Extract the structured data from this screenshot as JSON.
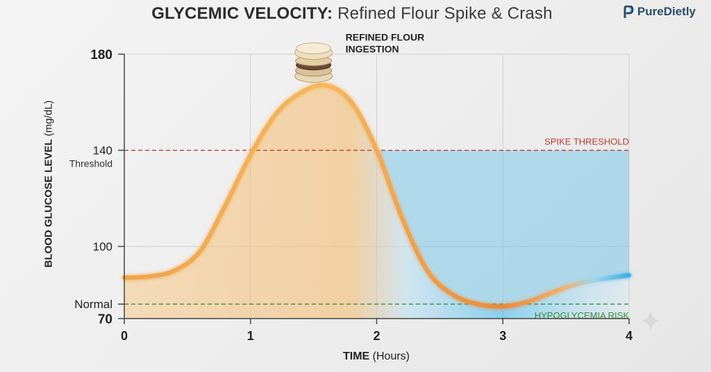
{
  "header": {
    "title_bold": "GLYCEMIC VELOCITY:",
    "title_rest": "Refined Flour Spike & Crash"
  },
  "brand": {
    "name": "PureDietly",
    "logo_icon": "leaf-p-icon",
    "color": "#2a4d6b"
  },
  "chart_data": {
    "type": "line",
    "title": "GLYCEMIC VELOCITY: Refined Flour Spike & Crash",
    "xlabel_bold": "TIME",
    "xlabel_rest": "(Hours)",
    "ylabel_bold": "BLOOD GLUCOSE LEVEL",
    "ylabel_rest": "(mg/dL)",
    "xlim": [
      0,
      4
    ],
    "ylim": [
      70,
      180
    ],
    "x_ticks": [
      0,
      1,
      2,
      3,
      4
    ],
    "y_ticks": [
      {
        "value": 180,
        "label": "180",
        "bold": true
      },
      {
        "value": 140,
        "label": "140",
        "bold": false,
        "sub": "Threshold"
      },
      {
        "value": 100,
        "label": "100",
        "bold": false
      },
      {
        "value": 76,
        "label": "Normal",
        "bold": false
      },
      {
        "value": 70,
        "label": "70",
        "bold": true
      }
    ],
    "grid": true,
    "series": [
      {
        "x": [
          0,
          0.2,
          0.4,
          0.6,
          0.8,
          1.0,
          1.2,
          1.4,
          1.6,
          1.8,
          2.0,
          2.2,
          2.4,
          2.6,
          2.8,
          3.0,
          3.2,
          3.4,
          3.6,
          3.8,
          4.0
        ],
        "y": [
          87,
          87.5,
          90,
          98,
          117,
          138,
          155,
          164,
          167,
          160,
          140,
          112,
          90,
          80,
          76,
          75,
          77,
          81,
          84.5,
          86.5,
          88
        ]
      }
    ],
    "reference_lines": [
      {
        "y": 140,
        "label": "SPIKE THRESHOLD",
        "color": "#c0392b"
      },
      {
        "y": 76,
        "label": "HYPOGLYCEMIA RISK",
        "color": "#3d8b37"
      }
    ],
    "annotations": [
      {
        "x": 1.5,
        "y": 172,
        "text_line1": "REFINED FLOUR",
        "text_line2": "INGESTION",
        "icon": "bread-stack-icon"
      }
    ],
    "colors": {
      "spike": "#f2a23a",
      "crash": "#3fb7ea",
      "axis": "#444444",
      "grid": "#cfcfcf"
    }
  }
}
